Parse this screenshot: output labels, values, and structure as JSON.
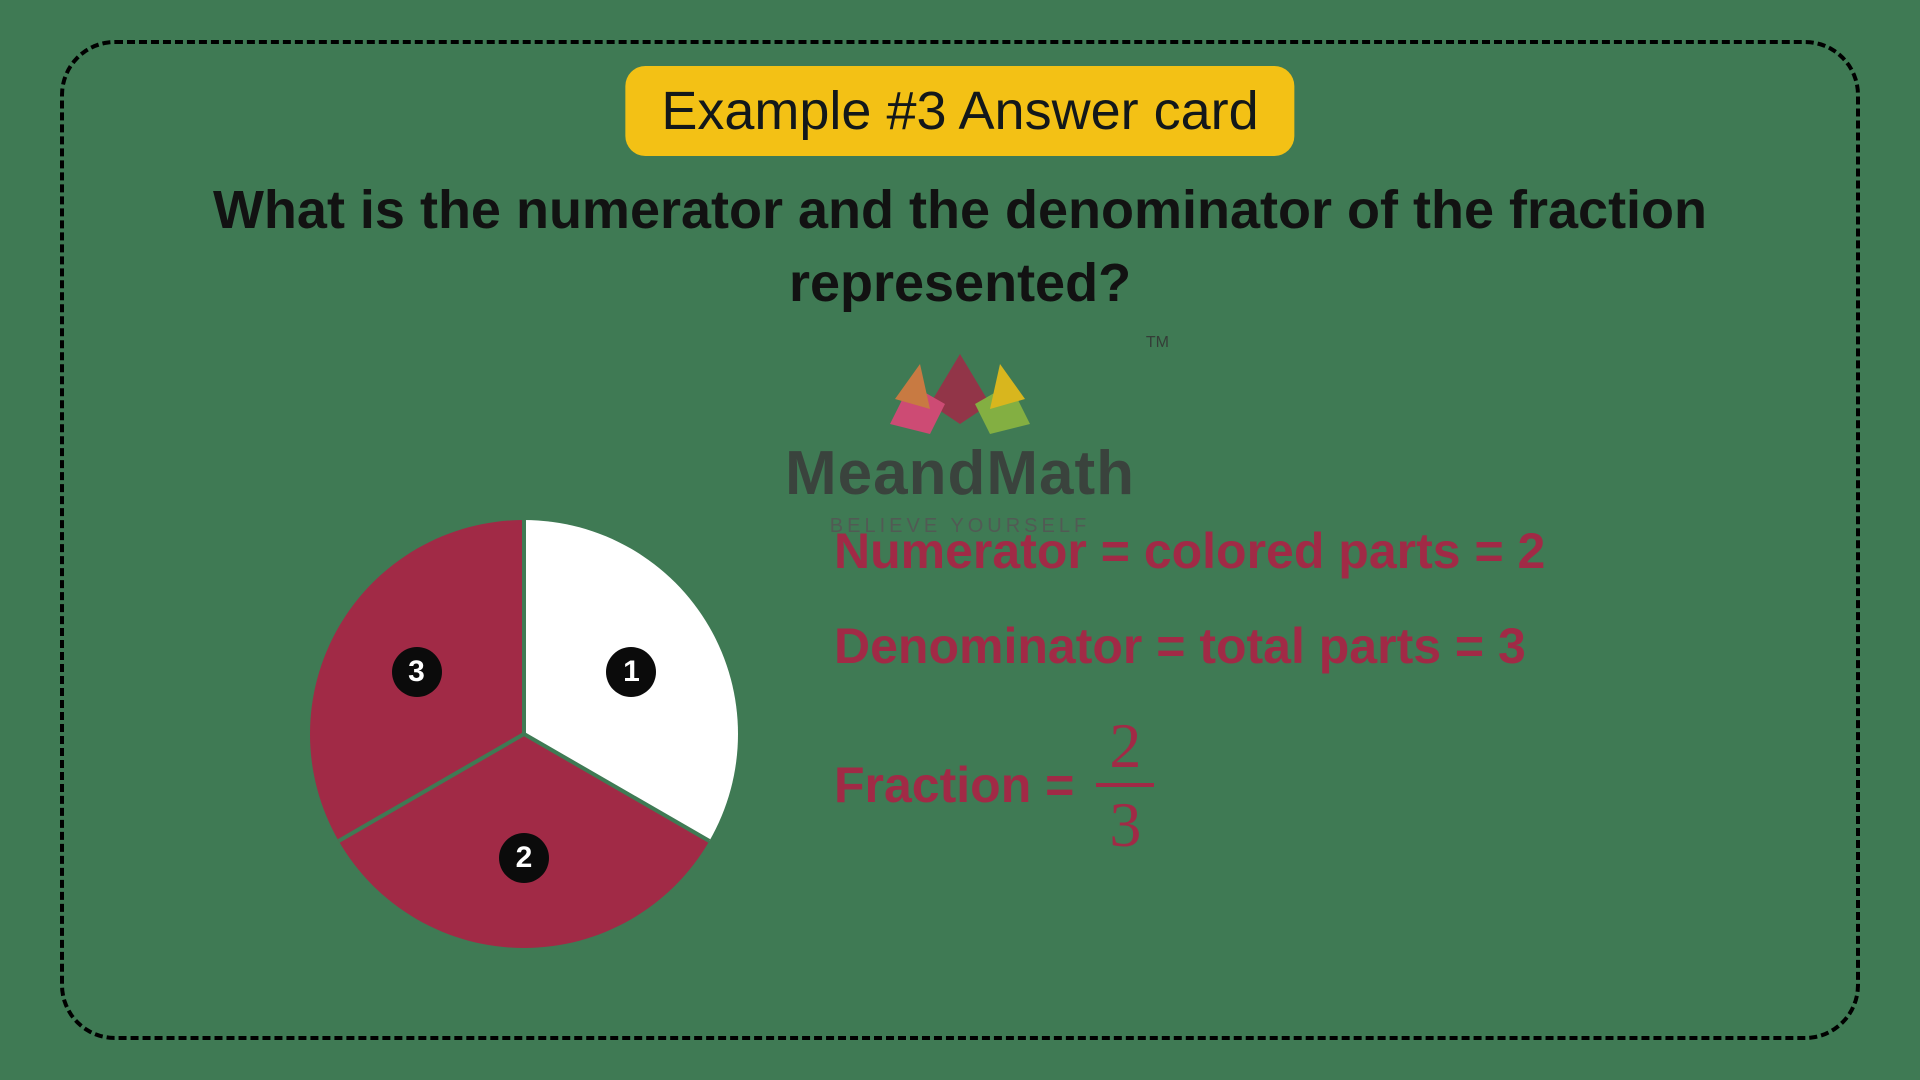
{
  "title": "Example #3 Answer card",
  "question": "What is the numerator and the denominator of the fraction represented?",
  "watermark": {
    "brand": "MeandMath",
    "tagline": "BELIEVE YOURSELF",
    "tm": "TM"
  },
  "pie": {
    "type": "pie",
    "slices": 3,
    "slice_colors": [
      "#ffffff",
      "#a12a46",
      "#a12a46"
    ],
    "divider_color": "#3f7a54",
    "divider_width": 4,
    "labels": [
      "1",
      "2",
      "3"
    ],
    "label_bg": "#0b0b0b",
    "label_fg": "#ffffff"
  },
  "answers": {
    "numerator_line": "Numerator = colored parts = 2",
    "denominator_line": "Denominator = total parts = 3",
    "fraction_label": "Fraction =",
    "fraction_numerator": "2",
    "fraction_denominator": "3",
    "text_color": "#a12a46",
    "fontsize": 50
  },
  "colors": {
    "background": "#3f7a54",
    "card_border": "#000000",
    "title_bg": "#f3c115",
    "title_fg": "#13181a",
    "question_fg": "#121212"
  }
}
